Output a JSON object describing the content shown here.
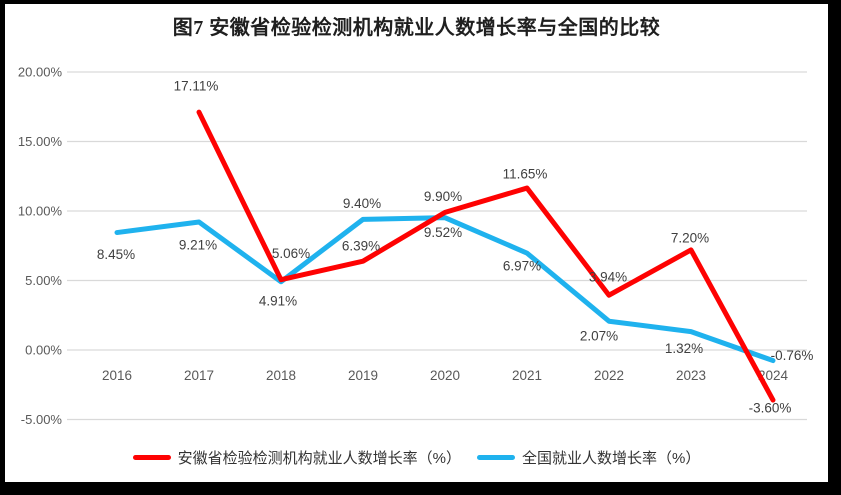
{
  "title": "图7 安徽省检验检测机构就业人数增长率与全国的比较",
  "chart_data": {
    "type": "line",
    "title": "图7 安徽省检验检测机构就业人数增长率与全国的比较",
    "categories": [
      "2016",
      "2017",
      "2018",
      "2019",
      "2020",
      "2021",
      "2022",
      "2023",
      "2024"
    ],
    "series": [
      {
        "name": "安徽省检验检测机构就业人数增长率（%）",
        "color": "#FE0202",
        "values": [
          null,
          17.11,
          5.06,
          6.39,
          9.9,
          11.65,
          3.94,
          7.2,
          -3.6
        ],
        "point_labels": [
          null,
          "17.11%",
          "5.06%",
          "6.39%",
          "9.90%",
          "11.65%",
          "3.94%",
          "7.20%",
          "-3.60%"
        ],
        "label_offsets": [
          [
            0,
            0
          ],
          [
            -3,
            -26
          ],
          [
            10,
            -26
          ],
          [
            -2,
            -15
          ],
          [
            -2,
            -16
          ],
          [
            -2,
            -14
          ],
          [
            -1,
            -18
          ],
          [
            -1,
            -12
          ],
          [
            -3,
            8
          ]
        ]
      },
      {
        "name": "全国就业人数增长率（%）",
        "color": "#1FB2EE",
        "values": [
          8.45,
          9.21,
          4.91,
          9.4,
          9.52,
          6.97,
          2.07,
          1.32,
          -0.76
        ],
        "point_labels": [
          "8.45%",
          "9.21%",
          "4.91%",
          "9.40%",
          "9.52%",
          "6.97%",
          "2.07%",
          "1.32%",
          "-0.76%"
        ],
        "label_offsets": [
          [
            -1,
            22
          ],
          [
            -1,
            23
          ],
          [
            -3,
            19
          ],
          [
            -1,
            -16
          ],
          [
            -2,
            15
          ],
          [
            -5,
            13
          ],
          [
            -10,
            15
          ],
          [
            -7,
            17
          ],
          [
            19,
            -5
          ]
        ]
      }
    ],
    "yticks": [
      "20.00%",
      "15.00%",
      "10.00%",
      "5.00%",
      "0.00%",
      "-5.00%"
    ],
    "ytick_values": [
      20,
      15,
      10,
      5,
      0,
      -5
    ],
    "ylim": [
      -5,
      20
    ],
    "xlabel": "",
    "ylabel": "",
    "grid": true,
    "legend_position": "bottom"
  },
  "colors": {
    "grid": "#D9D9D9",
    "axis_text": "#595959",
    "data_label": "#3F3F3F",
    "title_text": "#1F1F1F",
    "background": "#FFFFFF",
    "frame": "#000000"
  }
}
